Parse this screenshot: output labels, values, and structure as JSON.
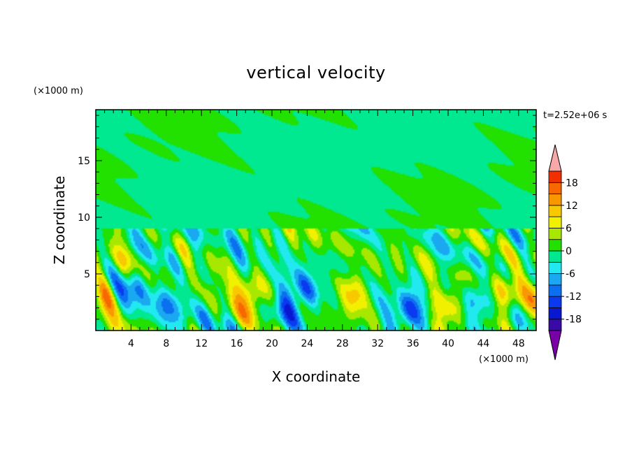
{
  "chart_data": {
    "type": "heatmap",
    "title": "vertical velocity",
    "xlabel": "X coordinate",
    "ylabel": "Z coordinate",
    "x_unit": "(×1000 m)",
    "y_unit": "(×1000 m)",
    "time_label": "t=2.52e+06 s",
    "xlim": [
      0,
      50
    ],
    "ylim": [
      0,
      19.5
    ],
    "x_ticks": [
      4,
      8,
      12,
      16,
      20,
      24,
      28,
      32,
      36,
      40,
      44,
      48
    ],
    "y_ticks": [
      5,
      10,
      15
    ],
    "colorbar": {
      "levels": [
        -21,
        -18,
        -15,
        -12,
        -9,
        -6,
        -3,
        0,
        3,
        6,
        9,
        12,
        15,
        18,
        21
      ],
      "tick_labels": [
        18,
        12,
        6,
        0,
        -6,
        -12,
        -18
      ],
      "colors": [
        "#7a00a8",
        "#3a0aa8",
        "#0818d0",
        "#0a3af0",
        "#0a70f0",
        "#1aa8f0",
        "#22e8f0",
        "#00e890",
        "#22e000",
        "#a8e800",
        "#f0f000",
        "#f8c800",
        "#f89800",
        "#f86800",
        "#f03000",
        "#f8a8a8"
      ],
      "extend": "both"
    },
    "features": [
      {
        "x": 1.0,
        "z": 3.2,
        "amp": 9
      },
      {
        "x": 17.5,
        "z": 3.0,
        "amp": 11
      },
      {
        "x": 29.5,
        "z": 3.4,
        "amp": 10
      },
      {
        "x": 40.5,
        "z": 2.4,
        "amp": 9
      },
      {
        "x": 46.5,
        "z": 3.0,
        "amp": 8
      },
      {
        "x": 50.0,
        "z": 3.0,
        "amp": 6
      },
      {
        "x": 4.5,
        "z": 4.2,
        "amp": -8
      },
      {
        "x": 8.0,
        "z": 2.2,
        "amp": -6
      },
      {
        "x": 21.8,
        "z": 2.3,
        "amp": -9
      },
      {
        "x": 24.0,
        "z": 3.5,
        "amp": -8
      },
      {
        "x": 35.5,
        "z": 1.8,
        "amp": -12
      },
      {
        "x": 43.0,
        "z": 2.5,
        "amp": -5
      }
    ]
  }
}
